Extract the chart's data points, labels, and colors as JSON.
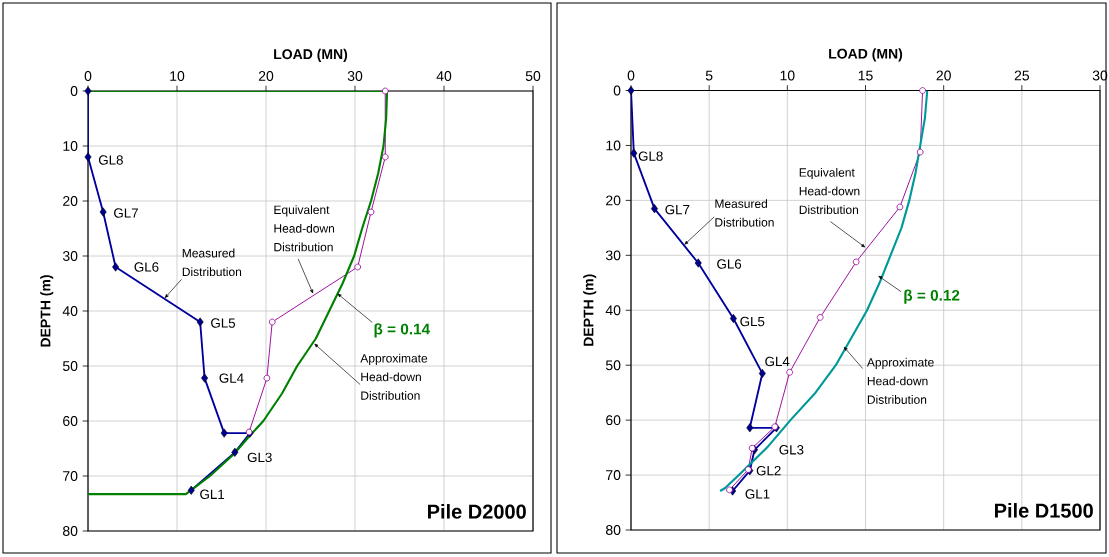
{
  "chart_data": [
    {
      "type": "line",
      "title": "Pile D2000",
      "xlabel": "LOAD (MN)",
      "ylabel": "DEPTH (m)",
      "xlim": [
        0,
        50
      ],
      "xticks": [
        0,
        10,
        20,
        30,
        40,
        50
      ],
      "ylim": [
        80,
        0
      ],
      "yticks": [
        0,
        10,
        20,
        30,
        40,
        50,
        60,
        70,
        80
      ],
      "grid": true,
      "series": [
        {
          "color": "#0000a0",
          "marker": "diamond",
          "x": [
            0,
            0,
            1.7,
            3.1,
            12.6,
            13.1,
            15.3,
            18.2,
            16.5,
            11.6
          ],
          "values": [
            0,
            12,
            22,
            32,
            42,
            52.2,
            62.2,
            62.2,
            65.7,
            72.6
          ]
        },
        {
          "color": "#990099",
          "marker": "circle",
          "x": [
            33.4,
            33.4,
            31.8,
            30.3,
            20.7,
            20.1,
            18.1
          ],
          "values": [
            0,
            12,
            22,
            32,
            42,
            52.2,
            62
          ]
        },
        {
          "color": "#008000",
          "marker": "none",
          "x": [
            0,
            33.6,
            33.5,
            33.2,
            32.6,
            31.8,
            30.8,
            29.9,
            28.6,
            27.1,
            25.6,
            23.5,
            21.8,
            19.7,
            18.0,
            16.4,
            13.7,
            11.0,
            0
          ],
          "values": [
            0,
            0,
            5,
            10,
            15,
            20,
            25,
            30,
            35,
            40,
            45,
            50,
            55,
            60,
            63,
            66,
            70,
            73.3,
            73.3
          ]
        }
      ],
      "annotations": [
        {
          "text": "GL8",
          "x": 0,
          "y": 12
        },
        {
          "text": "GL7",
          "x": 1.7,
          "y": 22
        },
        {
          "text": "GL6",
          "x": 3.1,
          "y": 32
        },
        {
          "text": "GL5",
          "x": 12.6,
          "y": 42
        },
        {
          "text": "GL4",
          "x": 13.1,
          "y": 52.2
        },
        {
          "text": "GL3",
          "x": 16.5,
          "y": 65.7
        },
        {
          "text": "GL1",
          "x": 11.6,
          "y": 72.6
        },
        {
          "text": "Measured Distribution",
          "x": 8.6,
          "y": 37.7
        },
        {
          "text": "Equivalent Head-down Distribution",
          "x": 25.3,
          "y": 36.9
        },
        {
          "text": "β = 0.14",
          "x": 28.0,
          "y": 36.8
        },
        {
          "text": "Approximate Head-down Distribution",
          "x": 25.4,
          "y": 45.9
        }
      ]
    },
    {
      "type": "line",
      "title": "Pile D1500",
      "xlabel": "LOAD (MN)",
      "ylabel": "DEPTH (m)",
      "xlim": [
        0,
        30
      ],
      "xticks": [
        0,
        5,
        10,
        15,
        20,
        25,
        30
      ],
      "ylim": [
        80,
        0
      ],
      "yticks": [
        0,
        10,
        20,
        30,
        40,
        50,
        60,
        70,
        80
      ],
      "grid": true,
      "series": [
        {
          "color": "#0000a0",
          "marker": "diamond",
          "x": [
            0,
            0.18,
            1.5,
            4.3,
            6.55,
            8.4,
            7.6,
            9.3,
            7.9,
            7.6,
            6.5
          ],
          "values": [
            0,
            11.4,
            21.5,
            31.4,
            41.5,
            51.5,
            61.4,
            61.4,
            65.4,
            69.2,
            72.9
          ]
        },
        {
          "color": "#990099",
          "marker": "circle",
          "x": [
            18.65,
            18.5,
            17.2,
            14.4,
            12.1,
            10.15,
            9.2,
            7.75,
            7.5,
            6.3
          ],
          "values": [
            0,
            11.2,
            21.2,
            31.2,
            41.3,
            51.3,
            61.2,
            65.1,
            69.0,
            72.7
          ]
        },
        {
          "color": "#009999",
          "marker": "none",
          "x": [
            18.95,
            18.8,
            18.5,
            18.2,
            17.8,
            17.3,
            16.6,
            15.9,
            15.1,
            14.1,
            13.1,
            11.8,
            10.2,
            8.7,
            6.9,
            6.0,
            5.7
          ],
          "values": [
            0,
            5,
            10,
            15,
            20,
            25,
            30,
            35,
            40,
            45,
            50,
            55,
            60,
            65,
            70,
            72.4,
            72.9
          ]
        }
      ],
      "annotations": [
        {
          "text": "GL8",
          "x": 0.18,
          "y": 11.4
        },
        {
          "text": "GL7",
          "x": 1.5,
          "y": 21.5
        },
        {
          "text": "GL6",
          "x": 4.3,
          "y": 31.4
        },
        {
          "text": "GL5",
          "x": 6.55,
          "y": 41.5
        },
        {
          "text": "GL4",
          "x": 8.4,
          "y": 51.5
        },
        {
          "text": "GL3",
          "x": 7.9,
          "y": 65.4
        },
        {
          "text": "GL2",
          "x": 7.6,
          "y": 69.2
        },
        {
          "text": "GL1",
          "x": 6.5,
          "y": 72.9
        },
        {
          "text": "Measured Distribution",
          "x": 3.4,
          "y": 28.1
        },
        {
          "text": "Equivalent Head-down Distribution",
          "x": 15.0,
          "y": 28.6
        },
        {
          "text": "β = 0.12",
          "x": 15.8,
          "y": 33.7
        },
        {
          "text": "Approximate Head-down Distribution",
          "x": 13.6,
          "y": 46.6
        }
      ]
    }
  ]
}
